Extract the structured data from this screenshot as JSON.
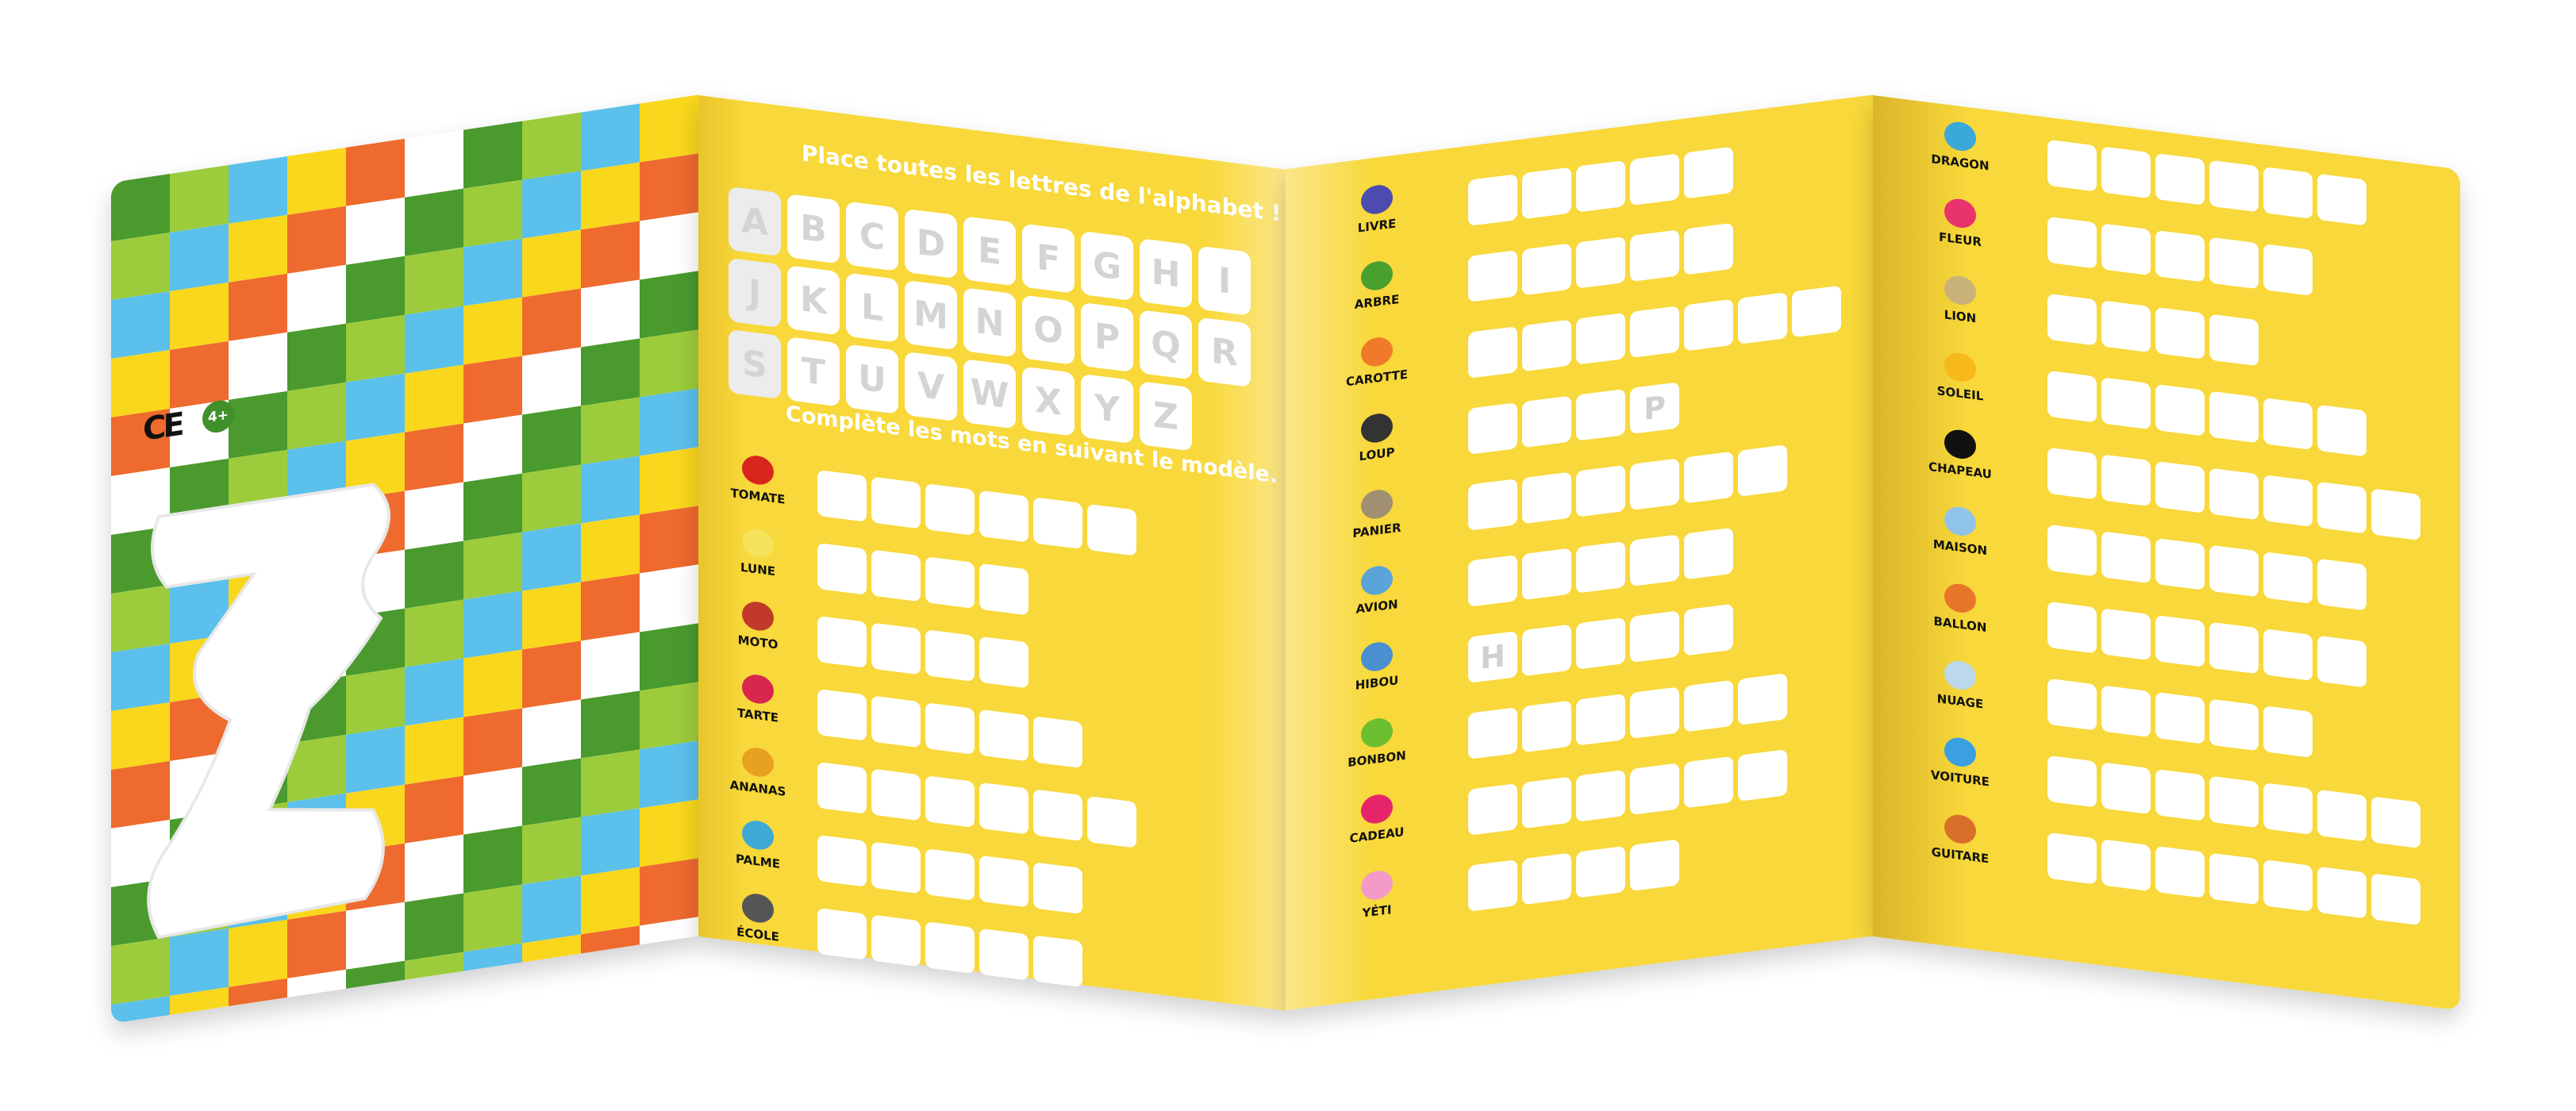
{
  "colors": {
    "board_yellow": "#f8d83a",
    "box_white": "#ffffff",
    "letter_gray": "#d0d0d0",
    "checker": [
      "#4a9a2e",
      "#9ccc3c",
      "#5bc0eb",
      "#f9d71c",
      "#ee6a2e",
      "#ffffff"
    ]
  },
  "cover": {
    "ce_mark": "CE",
    "age_badge": "4+",
    "cutout_shape": "letter-Z"
  },
  "alphabet": {
    "title": "Place toutes les lettres de l'alphabet !",
    "letters": [
      "A",
      "B",
      "C",
      "D",
      "E",
      "F",
      "G",
      "H",
      "I",
      "J",
      "K",
      "L",
      "M",
      "N",
      "O",
      "P",
      "Q",
      "R",
      "S",
      "T",
      "U",
      "V",
      "W",
      "X",
      "Y",
      "Z"
    ]
  },
  "words_intro": "Complète les mots en suivant le modèle.",
  "panel2_words": [
    {
      "label": "TOMATE",
      "icon": "tomato-icon",
      "color": "#d9261c",
      "boxes": 6,
      "hints": {}
    },
    {
      "label": "LUNE",
      "icon": "moon-icon",
      "color": "#f4e25a",
      "boxes": 4,
      "hints": {}
    },
    {
      "label": "MOTO",
      "icon": "motorbike-icon",
      "color": "#c0392b",
      "boxes": 4,
      "hints": {}
    },
    {
      "label": "TARTE",
      "icon": "tart-icon",
      "color": "#d9264f",
      "boxes": 5,
      "hints": {}
    },
    {
      "label": "ANANAS",
      "icon": "pineapple-icon",
      "color": "#e8a020",
      "boxes": 6,
      "hints": {}
    },
    {
      "label": "PALME",
      "icon": "flipper-icon",
      "color": "#3fa9d6",
      "boxes": 5,
      "hints": {}
    },
    {
      "label": "ÉCOLE",
      "icon": "school-icon",
      "color": "#555555",
      "boxes": 5,
      "hints": {}
    }
  ],
  "panel3_words": [
    {
      "label": "LIVRE",
      "icon": "book-icon",
      "color": "#4b4bb0",
      "boxes": 5,
      "hints": {}
    },
    {
      "label": "ARBRE",
      "icon": "tree-icon",
      "color": "#4aa02e",
      "boxes": 5,
      "hints": {}
    },
    {
      "label": "CAROTTE",
      "icon": "carrot-icon",
      "color": "#f07a2a",
      "boxes": 7,
      "hints": {}
    },
    {
      "label": "LOUP",
      "icon": "wolf-icon",
      "color": "#333333",
      "boxes": 4,
      "hints": {
        "3": "P"
      }
    },
    {
      "label": "PANIER",
      "icon": "basket-icon",
      "color": "#a08f70",
      "boxes": 6,
      "hints": {}
    },
    {
      "label": "AVION",
      "icon": "plane-icon",
      "color": "#5ba4d9",
      "boxes": 5,
      "hints": {}
    },
    {
      "label": "HIBOU",
      "icon": "owl-icon",
      "color": "#4a8fd0",
      "boxes": 5,
      "hints": {
        "0": "H"
      }
    },
    {
      "label": "BONBON",
      "icon": "candy-icon",
      "color": "#6cc030",
      "boxes": 6,
      "hints": {}
    },
    {
      "label": "CADEAU",
      "icon": "gift-icon",
      "color": "#e6246a",
      "boxes": 6,
      "hints": {}
    },
    {
      "label": "YÉTI",
      "icon": "yeti-icon",
      "color": "#f39ac8",
      "boxes": 4,
      "hints": {}
    }
  ],
  "panel4_words": [
    {
      "label": "DRAGON",
      "icon": "dragon-icon",
      "color": "#3aa8d8",
      "boxes": 6,
      "hints": {}
    },
    {
      "label": "FLEUR",
      "icon": "flower-icon",
      "color": "#e8336d",
      "boxes": 5,
      "hints": {}
    },
    {
      "label": "LION",
      "icon": "lion-icon",
      "color": "#c9b27a",
      "boxes": 4,
      "hints": {}
    },
    {
      "label": "SOLEIL",
      "icon": "sun-icon",
      "color": "#f7b81c",
      "boxes": 6,
      "hints": {}
    },
    {
      "label": "CHAPEAU",
      "icon": "hat-icon",
      "color": "#111111",
      "boxes": 7,
      "hints": {}
    },
    {
      "label": "MAISON",
      "icon": "house-icon",
      "color": "#8fc4e8",
      "boxes": 6,
      "hints": {}
    },
    {
      "label": "BALLON",
      "icon": "ball-icon",
      "color": "#e8762a",
      "boxes": 6,
      "hints": {}
    },
    {
      "label": "NUAGE",
      "icon": "cloud-icon",
      "color": "#bcd8ea",
      "boxes": 5,
      "hints": {}
    },
    {
      "label": "VOITURE",
      "icon": "car-icon",
      "color": "#3aa0e0",
      "boxes": 7,
      "hints": {}
    },
    {
      "label": "GUITARE",
      "icon": "guitar-icon",
      "color": "#d9702a",
      "boxes": 7,
      "hints": {}
    }
  ]
}
